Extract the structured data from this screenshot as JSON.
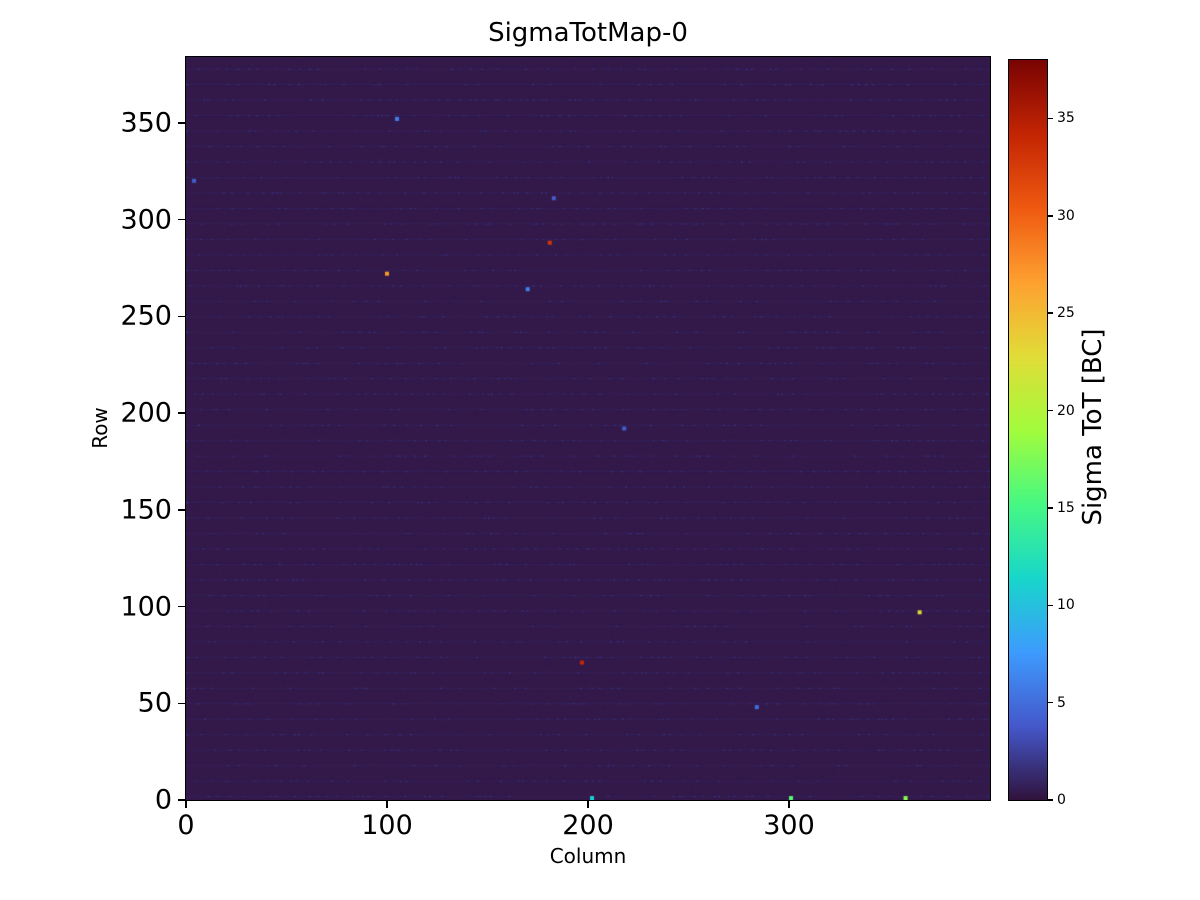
{
  "chart_data": {
    "type": "heatmap",
    "title": "SigmaTotMap-0",
    "xlabel": "Column",
    "ylabel": "Row",
    "colorbar_label": "Sigma ToT [BC]",
    "xlim": [
      0,
      400
    ],
    "ylim": [
      0,
      384
    ],
    "vmin": 0,
    "vmax": 38,
    "xticks": [
      0,
      100,
      200,
      300
    ],
    "yticks": [
      0,
      50,
      100,
      150,
      200,
      250,
      300,
      350
    ],
    "colorbar_ticks": [
      0,
      5,
      10,
      15,
      20,
      25,
      30,
      35
    ],
    "colormap": "turbo",
    "colormap_stops": [
      [
        0.0,
        "#30123b"
      ],
      [
        0.1,
        "#4458cb"
      ],
      [
        0.2,
        "#3e9bfe"
      ],
      [
        0.3,
        "#18d6cb"
      ],
      [
        0.4,
        "#46f884"
      ],
      [
        0.5,
        "#a2fc3c"
      ],
      [
        0.6,
        "#e1dd37"
      ],
      [
        0.7,
        "#fea130"
      ],
      [
        0.8,
        "#ef5a11"
      ],
      [
        0.9,
        "#c42503"
      ],
      [
        1.0,
        "#7a0403"
      ]
    ],
    "background_value": 0.4,
    "stripe_rows_period": 8,
    "stripe_value": 2.2,
    "outlier_points": [
      {
        "col": 4,
        "row": 320,
        "value": 4
      },
      {
        "col": 105,
        "row": 352,
        "value": 6
      },
      {
        "col": 183,
        "row": 311,
        "value": 4
      },
      {
        "col": 181,
        "row": 288,
        "value": 33
      },
      {
        "col": 100,
        "row": 272,
        "value": 27
      },
      {
        "col": 170,
        "row": 264,
        "value": 6
      },
      {
        "col": 218,
        "row": 192,
        "value": 4
      },
      {
        "col": 365,
        "row": 97,
        "value": 23
      },
      {
        "col": 197,
        "row": 71,
        "value": 34
      },
      {
        "col": 284,
        "row": 48,
        "value": 5
      },
      {
        "col": 202,
        "row": 1,
        "value": 11
      },
      {
        "col": 301,
        "row": 1,
        "value": 16
      },
      {
        "col": 358,
        "row": 1,
        "value": 18
      }
    ]
  }
}
